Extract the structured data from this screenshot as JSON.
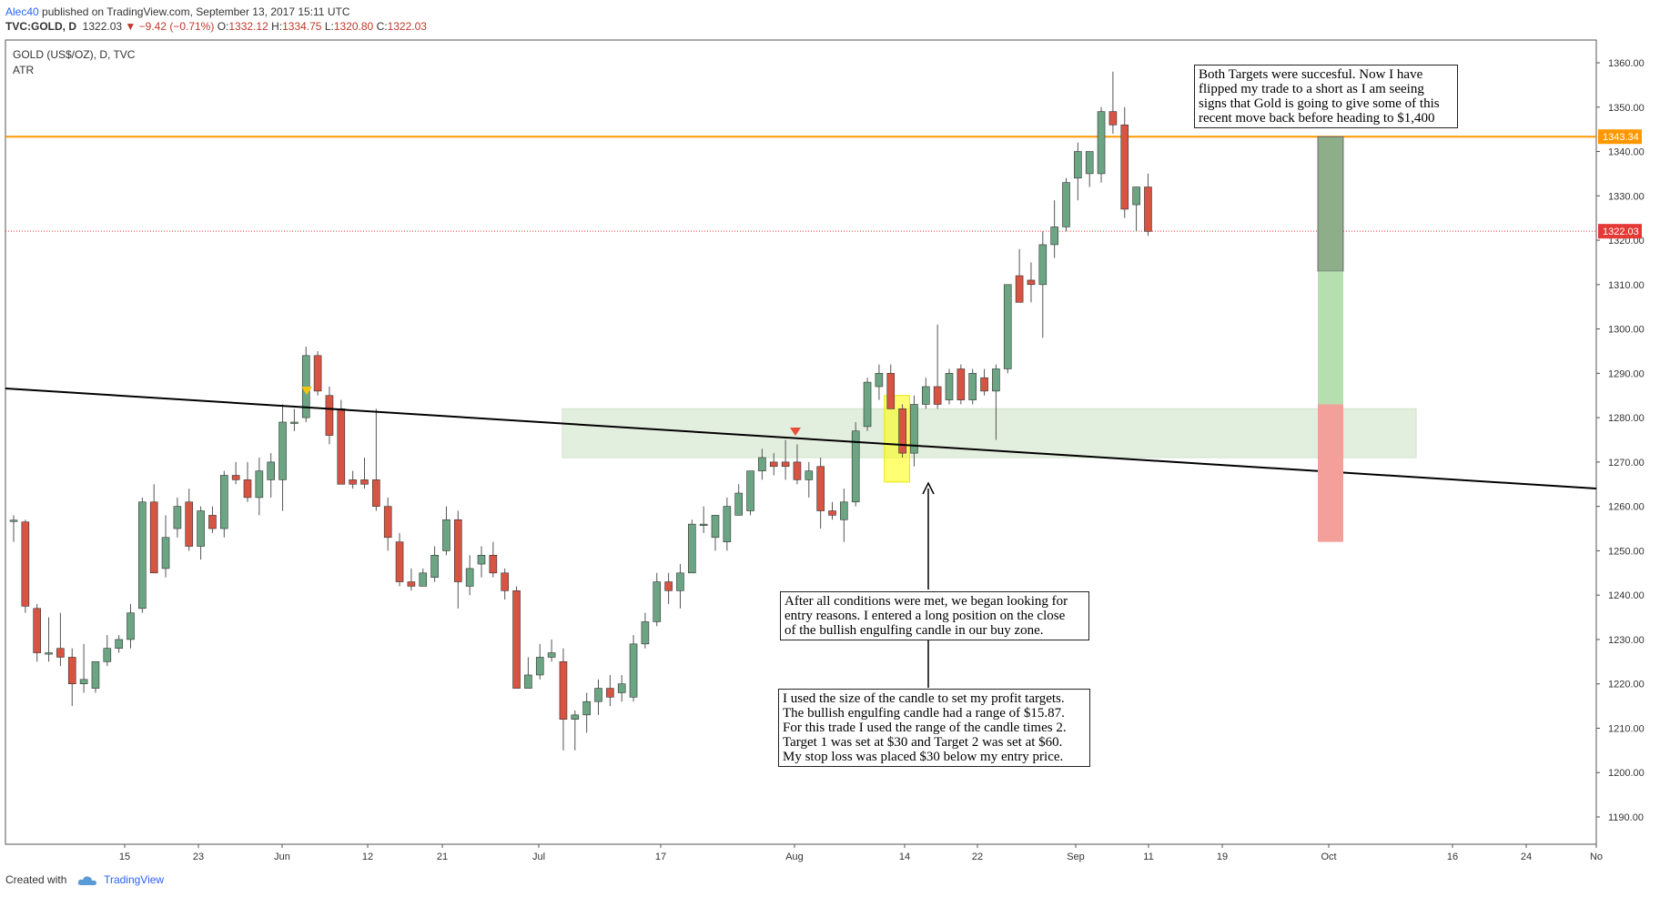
{
  "header": {
    "author": "Alec40",
    "published": "published on TradingView.com, September 13, 2017 15:11 UTC",
    "symbol": "TVC:GOLD, D",
    "last": "1322.03",
    "change": "▼ −9.42 (−0.71%)",
    "open_label": "O:",
    "open": "1332.12",
    "high_label": "H:",
    "high": "1334.75",
    "low_label": "L:",
    "low": "1320.80",
    "close_label": "C:",
    "close": "1322.03"
  },
  "pane": {
    "title": "GOLD (US$/OZ), D, TVC",
    "indicator": "ATR"
  },
  "annotations": {
    "top_right": "Both Targets were succesful. Now I have\nflipped my trade to a short as I am seeing\nsigns that Gold is going to give some of this\nrecent move back before heading to $1,400",
    "middle": "After all conditions were met, we began looking for\nentry reasons. I entered a long position on the close\nof the bullish engulfing candle in our buy zone.",
    "bottom": "I used the size of the candle to set my profit targets.\nThe bullish engulfing candle had a range of $15.87.\nFor this trade I used the range of the candle times 2.\nTarget 1 was set at $30 and Target 2 was set at $60.\nMy stop loss was placed $30 below my entry price."
  },
  "footer": {
    "created_with": "Created with",
    "brand": "TradingView"
  },
  "colors": {
    "up": "#6ba583",
    "down": "#d75442",
    "orange": "#ff9800",
    "close_line": "#e53935",
    "zone": "#dcebd6",
    "highlight": "#ffff00"
  },
  "chart_data": {
    "type": "candlestick",
    "title": "GOLD (US$/OZ), D, TVC",
    "ylim": [
      1184,
      1366
    ],
    "y_ticks": [
      1190,
      1200,
      1210,
      1220,
      1230,
      1240,
      1250,
      1260,
      1270,
      1280,
      1290,
      1300,
      1310,
      1320,
      1330,
      1340,
      1350,
      1360
    ],
    "x_ticks": [
      "15",
      "23",
      "Jun",
      "12",
      "21",
      "Jul",
      "17",
      "Aug",
      "14",
      "22",
      "Sep",
      "11",
      "19",
      "Oct",
      "16",
      "24",
      "No"
    ],
    "price_labels": [
      "1343.34",
      "1322.03"
    ],
    "horizontal_lines": [
      {
        "price": 1343.34,
        "color": "orange"
      },
      {
        "price": 1322.03,
        "style": "dotted",
        "color": "red"
      }
    ],
    "buy_zone": [
      1271,
      1282
    ],
    "candles": [
      {
        "o": 1256.9,
        "h": 1258,
        "l": 1252,
        "c": 1256.9
      },
      {
        "o": 1256.5,
        "h": 1257,
        "l": 1236,
        "c": 1237.5
      },
      {
        "o": 1237,
        "h": 1238,
        "l": 1225,
        "c": 1227
      },
      {
        "o": 1227,
        "h": 1235,
        "l": 1225,
        "c": 1227
      },
      {
        "o": 1228,
        "h": 1236,
        "l": 1224,
        "c": 1226
      },
      {
        "o": 1226,
        "h": 1228,
        "l": 1215,
        "c": 1220
      },
      {
        "o": 1220,
        "h": 1229,
        "l": 1218,
        "c": 1221
      },
      {
        "o": 1219,
        "h": 1225,
        "l": 1218,
        "c": 1225
      },
      {
        "o": 1225,
        "h": 1231,
        "l": 1224,
        "c": 1228
      },
      {
        "o": 1228,
        "h": 1231,
        "l": 1227,
        "c": 1230
      },
      {
        "o": 1230,
        "h": 1238,
        "l": 1228,
        "c": 1236
      },
      {
        "o": 1237,
        "h": 1262,
        "l": 1236,
        "c": 1261
      },
      {
        "o": 1261,
        "h": 1265,
        "l": 1245,
        "c": 1245
      },
      {
        "o": 1246,
        "h": 1258,
        "l": 1244,
        "c": 1253
      },
      {
        "o": 1255,
        "h": 1262,
        "l": 1253,
        "c": 1260
      },
      {
        "o": 1261,
        "h": 1264,
        "l": 1250,
        "c": 1251
      },
      {
        "o": 1251,
        "h": 1260,
        "l": 1248,
        "c": 1259
      },
      {
        "o": 1258,
        "h": 1260,
        "l": 1254,
        "c": 1255
      },
      {
        "o": 1255,
        "h": 1268,
        "l": 1253,
        "c": 1267
      },
      {
        "o": 1267,
        "h": 1270,
        "l": 1265,
        "c": 1266
      },
      {
        "o": 1266,
        "h": 1270,
        "l": 1261,
        "c": 1262
      },
      {
        "o": 1262,
        "h": 1271,
        "l": 1258,
        "c": 1268
      },
      {
        "o": 1266,
        "h": 1272,
        "l": 1262,
        "c": 1270
      },
      {
        "o": 1266,
        "h": 1283,
        "l": 1259,
        "c": 1279
      },
      {
        "o": 1279,
        "h": 1282,
        "l": 1277,
        "c": 1279
      },
      {
        "o": 1280,
        "h": 1296,
        "l": 1279,
        "c": 1294
      },
      {
        "o": 1294,
        "h": 1295,
        "l": 1285,
        "c": 1286
      },
      {
        "o": 1285,
        "h": 1287,
        "l": 1274,
        "c": 1276
      },
      {
        "o": 1282,
        "h": 1284,
        "l": 1265,
        "c": 1265
      },
      {
        "o": 1266,
        "h": 1268,
        "l": 1264,
        "c": 1265
      },
      {
        "o": 1266,
        "h": 1271,
        "l": 1264,
        "c": 1265
      },
      {
        "o": 1266,
        "h": 1282,
        "l": 1259,
        "c": 1260
      },
      {
        "o": 1260,
        "h": 1262,
        "l": 1250,
        "c": 1253
      },
      {
        "o": 1252,
        "h": 1254,
        "l": 1242,
        "c": 1243
      },
      {
        "o": 1243,
        "h": 1246,
        "l": 1241,
        "c": 1242
      },
      {
        "o": 1242,
        "h": 1246,
        "l": 1242,
        "c": 1245
      },
      {
        "o": 1244,
        "h": 1251,
        "l": 1243,
        "c": 1249
      },
      {
        "o": 1250,
        "h": 1260,
        "l": 1249,
        "c": 1257
      },
      {
        "o": 1257,
        "h": 1259,
        "l": 1237,
        "c": 1243
      },
      {
        "o": 1242,
        "h": 1249,
        "l": 1240,
        "c": 1246
      },
      {
        "o": 1247,
        "h": 1251,
        "l": 1244,
        "c": 1249
      },
      {
        "o": 1249,
        "h": 1252,
        "l": 1244,
        "c": 1245
      },
      {
        "o": 1245,
        "h": 1246,
        "l": 1239,
        "c": 1241
      },
      {
        "o": 1241,
        "h": 1242,
        "l": 1219,
        "c": 1219
      },
      {
        "o": 1219,
        "h": 1226,
        "l": 1219,
        "c": 1222
      },
      {
        "o": 1222,
        "h": 1229,
        "l": 1221,
        "c": 1226
      },
      {
        "o": 1226,
        "h": 1230,
        "l": 1225,
        "c": 1227
      },
      {
        "o": 1225,
        "h": 1228,
        "l": 1205,
        "c": 1212
      },
      {
        "o": 1212,
        "h": 1214,
        "l": 1205,
        "c": 1213
      },
      {
        "o": 1213,
        "h": 1218,
        "l": 1209,
        "c": 1216
      },
      {
        "o": 1216,
        "h": 1221,
        "l": 1213,
        "c": 1219
      },
      {
        "o": 1219,
        "h": 1222,
        "l": 1215,
        "c": 1217
      },
      {
        "o": 1218,
        "h": 1222,
        "l": 1216,
        "c": 1220
      },
      {
        "o": 1217,
        "h": 1231,
        "l": 1216,
        "c": 1229
      },
      {
        "o": 1229,
        "h": 1236,
        "l": 1228,
        "c": 1234
      },
      {
        "o": 1234,
        "h": 1245,
        "l": 1233,
        "c": 1243
      },
      {
        "o": 1243,
        "h": 1245,
        "l": 1238,
        "c": 1241
      },
      {
        "o": 1241,
        "h": 1247,
        "l": 1237,
        "c": 1245
      },
      {
        "o": 1245,
        "h": 1257,
        "l": 1245,
        "c": 1256
      },
      {
        "o": 1256,
        "h": 1260,
        "l": 1254,
        "c": 1256
      },
      {
        "o": 1253,
        "h": 1258,
        "l": 1250,
        "c": 1258
      },
      {
        "o": 1252,
        "h": 1262,
        "l": 1250,
        "c": 1260
      },
      {
        "o": 1258,
        "h": 1265,
        "l": 1258,
        "c": 1263
      },
      {
        "o": 1259,
        "h": 1268,
        "l": 1258,
        "c": 1268
      },
      {
        "o": 1268,
        "h": 1273,
        "l": 1266,
        "c": 1271
      },
      {
        "o": 1270,
        "h": 1272,
        "l": 1267,
        "c": 1269
      },
      {
        "o": 1270,
        "h": 1275,
        "l": 1266,
        "c": 1269
      },
      {
        "o": 1270,
        "h": 1274,
        "l": 1265,
        "c": 1266
      },
      {
        "o": 1266,
        "h": 1270,
        "l": 1262,
        "c": 1268
      },
      {
        "o": 1269,
        "h": 1271,
        "l": 1255,
        "c": 1259
      },
      {
        "o": 1259,
        "h": 1261,
        "l": 1257,
        "c": 1258
      },
      {
        "o": 1257,
        "h": 1264,
        "l": 1252,
        "c": 1261
      },
      {
        "o": 1261,
        "h": 1279,
        "l": 1260,
        "c": 1277
      },
      {
        "o": 1278,
        "h": 1289,
        "l": 1277,
        "c": 1288
      },
      {
        "o": 1287,
        "h": 1292,
        "l": 1284,
        "c": 1290
      },
      {
        "o": 1290,
        "h": 1292,
        "l": 1282,
        "c": 1282
      },
      {
        "o": 1282,
        "h": 1283,
        "l": 1271,
        "c": 1272
      },
      {
        "o": 1272,
        "h": 1285,
        "l": 1269,
        "c": 1283
      },
      {
        "o": 1283,
        "h": 1289,
        "l": 1282,
        "c": 1287
      },
      {
        "o": 1287,
        "h": 1301,
        "l": 1282,
        "c": 1283
      },
      {
        "o": 1284,
        "h": 1291,
        "l": 1283,
        "c": 1290
      },
      {
        "o": 1291,
        "h": 1292,
        "l": 1283,
        "c": 1284
      },
      {
        "o": 1284,
        "h": 1291,
        "l": 1283,
        "c": 1290
      },
      {
        "o": 1289,
        "h": 1291,
        "l": 1285,
        "c": 1286
      },
      {
        "o": 1286,
        "h": 1292,
        "l": 1275,
        "c": 1291
      },
      {
        "o": 1291,
        "h": 1310,
        "l": 1290,
        "c": 1310
      },
      {
        "o": 1312,
        "h": 1318,
        "l": 1307,
        "c": 1306
      },
      {
        "o": 1311,
        "h": 1315,
        "l": 1306,
        "c": 1310
      },
      {
        "o": 1310,
        "h": 1322,
        "l": 1298,
        "c": 1319
      },
      {
        "o": 1319,
        "h": 1329,
        "l": 1316,
        "c": 1323
      },
      {
        "o": 1323,
        "h": 1334,
        "l": 1322,
        "c": 1333
      },
      {
        "o": 1334,
        "h": 1342,
        "l": 1329,
        "c": 1340
      },
      {
        "o": 1335,
        "h": 1340,
        "l": 1332,
        "c": 1340
      },
      {
        "o": 1335,
        "h": 1350,
        "l": 1333,
        "c": 1349
      },
      {
        "o": 1349,
        "h": 1358,
        "l": 1344,
        "c": 1346
      },
      {
        "o": 1346,
        "h": 1350,
        "l": 1325,
        "c": 1327
      },
      {
        "o": 1328,
        "h": 1332,
        "l": 1322,
        "c": 1332
      },
      {
        "o": 1332,
        "h": 1335,
        "l": 1321,
        "c": 1322
      }
    ]
  }
}
